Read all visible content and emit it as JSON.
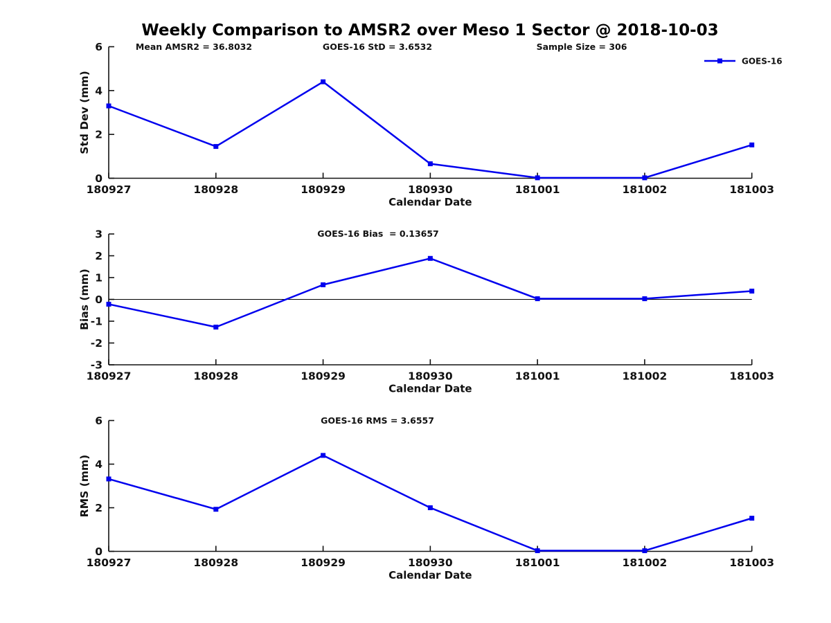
{
  "title": "Weekly Comparison to AMSR2 over Meso 1 Sector @ 2018-10-03",
  "annotations": {
    "mean_amsr2": "Mean AMSR2 = 36.8032",
    "goes16_std": "GOES-16 StD = 3.6532",
    "sample_size": "Sample Size = 306"
  },
  "colors": {
    "line": "#0000ee",
    "zero_line": "#000000",
    "axis": "#111111",
    "text": "#111111",
    "background": "#ffffff"
  },
  "chart_data": [
    {
      "type": "line",
      "panel": "std-dev",
      "title": "",
      "x": [
        "180927",
        "180928",
        "180929",
        "180930",
        "181001",
        "181002",
        "181003"
      ],
      "series": [
        {
          "name": "GOES-16",
          "values": [
            3.3,
            1.45,
            4.4,
            0.66,
            0.02,
            0.02,
            1.52
          ]
        }
      ],
      "xlabel": "Calendar Date",
      "ylabel": "Std Dev (mm)",
      "ylim": [
        0,
        6
      ],
      "yticks": [
        0,
        2,
        4,
        6
      ],
      "zero_line": false,
      "grid": false,
      "legend": {
        "label": "GOES-16",
        "position": "top-right"
      }
    },
    {
      "type": "line",
      "panel": "bias",
      "title": "GOES-16 Bias  = 0.13657",
      "x": [
        "180927",
        "180928",
        "180929",
        "180930",
        "181001",
        "181002",
        "181003"
      ],
      "series": [
        {
          "name": "GOES-16",
          "values": [
            -0.22,
            -1.27,
            0.67,
            1.88,
            0.03,
            0.03,
            0.38
          ]
        }
      ],
      "xlabel": "Calendar Date",
      "ylabel": "Bias (mm)",
      "ylim": [
        -3,
        3
      ],
      "yticks": [
        3,
        2,
        1,
        0,
        -1,
        -2,
        -3
      ],
      "zero_line": true,
      "grid": false,
      "legend": null
    },
    {
      "type": "line",
      "panel": "rms",
      "title": "GOES-16 RMS = 3.6557",
      "x": [
        "180927",
        "180928",
        "180929",
        "180930",
        "181001",
        "181002",
        "181003"
      ],
      "series": [
        {
          "name": "GOES-16",
          "values": [
            3.32,
            1.93,
            4.4,
            2.0,
            0.03,
            0.03,
            1.52
          ]
        }
      ],
      "xlabel": "Calendar Date",
      "ylabel": "RMS (mm)",
      "ylim": [
        0,
        6
      ],
      "yticks": [
        0,
        2,
        4,
        6
      ],
      "zero_line": false,
      "grid": false,
      "legend": null
    }
  ]
}
